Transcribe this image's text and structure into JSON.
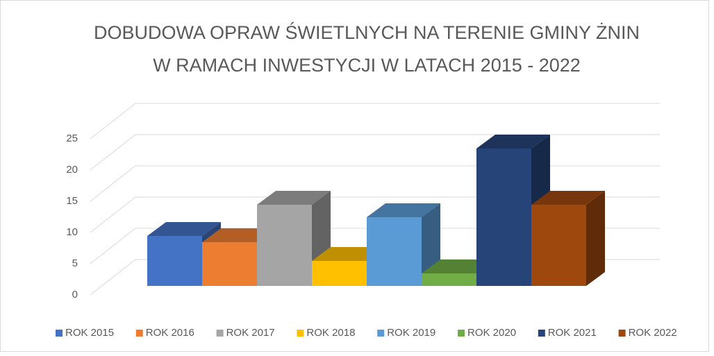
{
  "chart_data": {
    "type": "bar3d",
    "title": [
      "DOBUDOWA OPRAW ŚWIETLNYCH NA TERENIE GMINY ŻNIN",
      "W RAMACH INWESTYCJI W LATACH 2015 - 2022"
    ],
    "series": [
      {
        "name": "ROK 2015",
        "color": "#4472c4",
        "values": [
          8
        ]
      },
      {
        "name": "ROK 2016",
        "color": "#ed7d31",
        "values": [
          7
        ]
      },
      {
        "name": "ROK 2017",
        "color": "#a5a5a5",
        "values": [
          13
        ]
      },
      {
        "name": "ROK 2018",
        "color": "#ffc000",
        "values": [
          4
        ]
      },
      {
        "name": "ROK 2019",
        "color": "#5b9bd5",
        "values": [
          11
        ]
      },
      {
        "name": "ROK 2020",
        "color": "#70ad47",
        "values": [
          2
        ]
      },
      {
        "name": "ROK 2021",
        "color": "#264478",
        "values": [
          22
        ]
      },
      {
        "name": "ROK 2022",
        "color": "#9e480e",
        "values": [
          13
        ]
      }
    ],
    "ylim": [
      0,
      25
    ],
    "yticks": [
      0,
      5,
      10,
      15,
      20,
      25
    ],
    "grid": true,
    "legend": "bottom"
  }
}
